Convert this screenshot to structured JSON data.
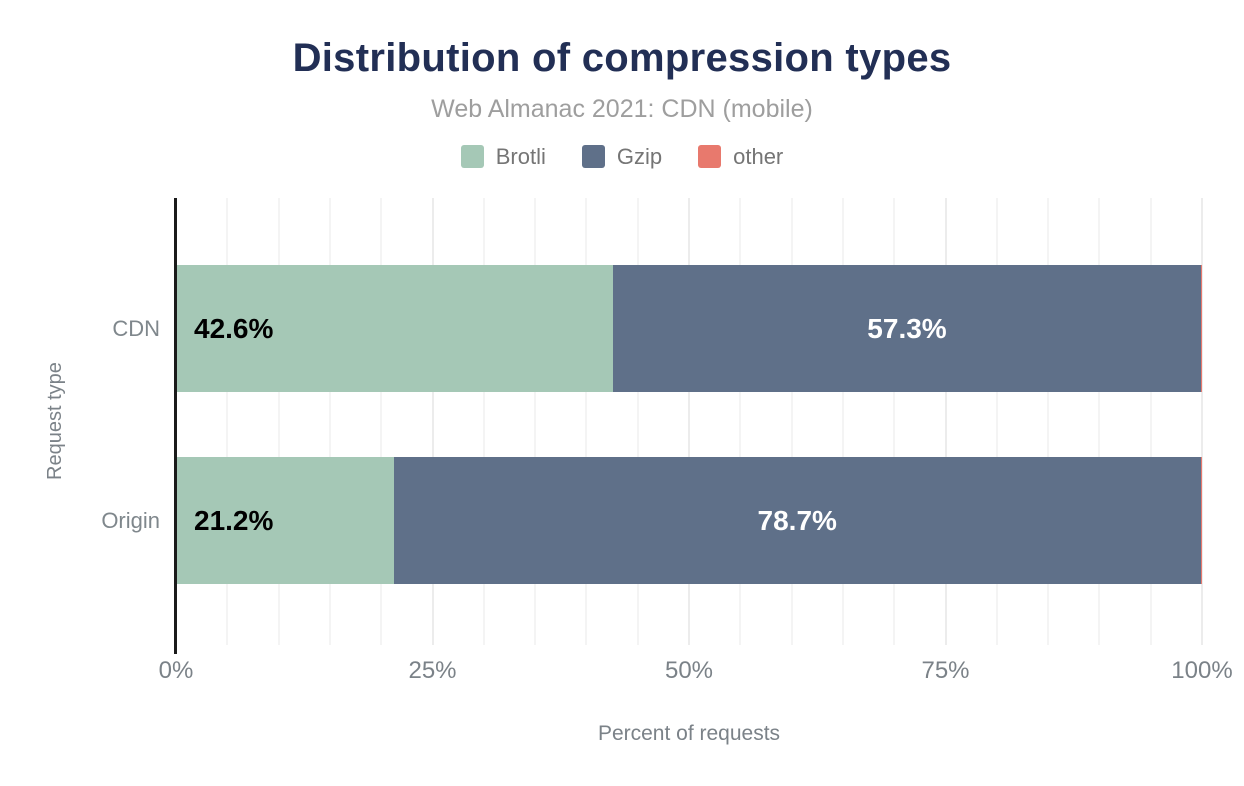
{
  "title": "Distribution of compression types",
  "subtitle": "Web Almanac 2021: CDN (mobile)",
  "legend": [
    {
      "label": "Brotli",
      "color": "#a5c8b6"
    },
    {
      "label": "Gzip",
      "color": "#5f7089"
    },
    {
      "label": "other",
      "color": "#e8796d"
    }
  ],
  "colors": {
    "title": "#222f55",
    "subtitle": "#9e9e9e",
    "axis_text": "#7b8288",
    "legend_text": "#757575",
    "axis_line": "#1b1b1b",
    "gridline_minor": "#f4f4f4",
    "gridline_major": "#ececec",
    "background": "#ffffff",
    "label_on_light": "#000000",
    "label_on_dark": "#ffffff"
  },
  "chart_data": {
    "type": "bar",
    "orientation": "horizontal",
    "stacked": true,
    "title": "Distribution of compression types",
    "subtitle": "Web Almanac 2021: CDN (mobile)",
    "xlabel": "Percent of requests",
    "ylabel": "Request type",
    "categories": [
      "CDN",
      "Origin"
    ],
    "series": [
      {
        "name": "Brotli",
        "color": "#a5c8b6",
        "values": [
          42.6,
          21.2
        ],
        "labels": [
          "42.6%",
          "21.2%"
        ],
        "label_color": "#000000",
        "label_align": "left"
      },
      {
        "name": "Gzip",
        "color": "#5f7089",
        "values": [
          57.3,
          78.7
        ],
        "labels": [
          "57.3%",
          "78.7%"
        ],
        "label_color": "#ffffff",
        "label_align": "center"
      },
      {
        "name": "other",
        "color": "#e8796d",
        "values": [
          0.1,
          0.1
        ],
        "labels": [
          "",
          ""
        ],
        "label_color": "#ffffff",
        "label_align": "none"
      }
    ],
    "xlim": [
      0,
      100
    ],
    "x_ticks": [
      {
        "label": "0%",
        "value": 0
      },
      {
        "label": "25%",
        "value": 25
      },
      {
        "label": "50%",
        "value": 50
      },
      {
        "label": "75%",
        "value": 75
      },
      {
        "label": "100%",
        "value": 100
      }
    ],
    "grid": true,
    "gridline_step_percent": 5,
    "legend_position": "top"
  }
}
